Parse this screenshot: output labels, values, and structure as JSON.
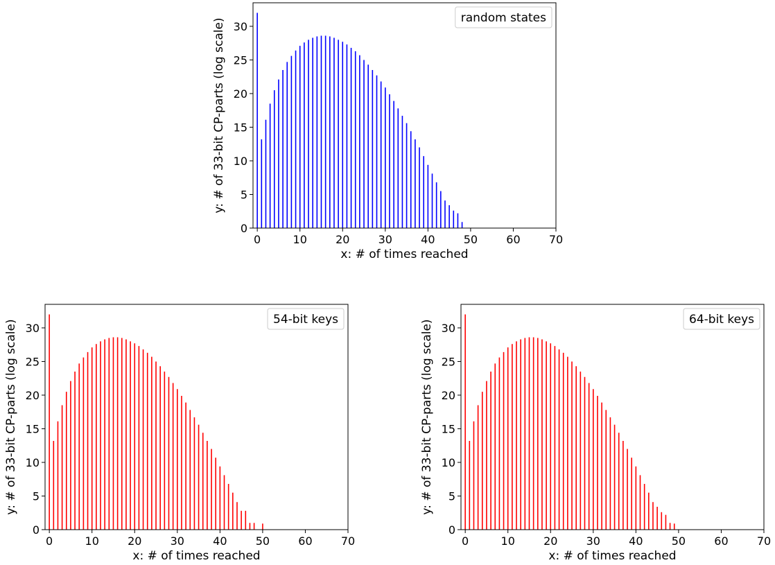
{
  "chart_data": [
    {
      "type": "bar",
      "legend": "random states",
      "legend_position": "top-right",
      "color": "#0000ff",
      "xlabel": "x: # of times reached",
      "ylabel": "y: # of 33-bit CP-parts (log scale)",
      "xlim": [
        -1,
        70
      ],
      "ylim": [
        0,
        33.5
      ],
      "xticks": [
        "0",
        "10",
        "20",
        "30",
        "40",
        "50",
        "60",
        "70"
      ],
      "yticks": [
        "0",
        "5",
        "10",
        "15",
        "20",
        "25",
        "30"
      ],
      "x": [
        0,
        1,
        2,
        3,
        4,
        5,
        6,
        7,
        8,
        9,
        10,
        11,
        12,
        13,
        14,
        15,
        16,
        17,
        18,
        19,
        20,
        21,
        22,
        23,
        24,
        25,
        26,
        27,
        28,
        29,
        30,
        31,
        32,
        33,
        34,
        35,
        36,
        37,
        38,
        39,
        40,
        41,
        42,
        43,
        44,
        45,
        46,
        47,
        48
      ],
      "values": [
        32.0,
        13.2,
        16.1,
        18.5,
        20.5,
        22.1,
        23.5,
        24.7,
        25.6,
        26.4,
        27.1,
        27.6,
        28.0,
        28.3,
        28.5,
        28.6,
        28.6,
        28.5,
        28.3,
        28.0,
        27.7,
        27.3,
        26.8,
        26.3,
        25.7,
        25.0,
        24.3,
        23.5,
        22.7,
        21.8,
        20.9,
        19.9,
        18.9,
        17.8,
        16.7,
        15.6,
        14.4,
        13.2,
        12.0,
        10.7,
        9.4,
        8.1,
        6.8,
        5.5,
        4.1,
        3.4,
        2.6,
        2.2,
        0.9
      ]
    },
    {
      "type": "bar",
      "legend": "54-bit keys",
      "legend_position": "top-right",
      "color": "#ff0000",
      "xlabel": "x: # of times reached",
      "ylabel": "y: # of 33-bit CP-parts (log scale)",
      "xlim": [
        -1,
        70
      ],
      "ylim": [
        0,
        33.5
      ],
      "xticks": [
        "0",
        "10",
        "20",
        "30",
        "40",
        "50",
        "60",
        "70"
      ],
      "yticks": [
        "0",
        "5",
        "10",
        "15",
        "20",
        "25",
        "30"
      ],
      "x": [
        0,
        1,
        2,
        3,
        4,
        5,
        6,
        7,
        8,
        9,
        10,
        11,
        12,
        13,
        14,
        15,
        16,
        17,
        18,
        19,
        20,
        21,
        22,
        23,
        24,
        25,
        26,
        27,
        28,
        29,
        30,
        31,
        32,
        33,
        34,
        35,
        36,
        37,
        38,
        39,
        40,
        41,
        42,
        43,
        44,
        45,
        46,
        47,
        48,
        50
      ],
      "values": [
        32.0,
        13.2,
        16.1,
        18.5,
        20.5,
        22.1,
        23.5,
        24.7,
        25.6,
        26.4,
        27.1,
        27.6,
        28.0,
        28.3,
        28.5,
        28.6,
        28.6,
        28.5,
        28.3,
        28.0,
        27.7,
        27.3,
        26.8,
        26.3,
        25.7,
        25.0,
        24.3,
        23.5,
        22.7,
        21.8,
        20.9,
        19.9,
        18.9,
        17.8,
        16.7,
        15.6,
        14.4,
        13.2,
        12.0,
        10.7,
        9.4,
        8.1,
        6.8,
        5.5,
        4.1,
        2.8,
        2.8,
        1.0,
        1.0,
        0.9
      ]
    },
    {
      "type": "bar",
      "legend": "64-bit keys",
      "legend_position": "top-right",
      "color": "#ff0000",
      "xlabel": "x: # of times reached",
      "ylabel": "y: # of 33-bit CP-parts (log scale)",
      "xlim": [
        -1,
        70
      ],
      "ylim": [
        0,
        33.5
      ],
      "xticks": [
        "0",
        "10",
        "20",
        "30",
        "40",
        "50",
        "60",
        "70"
      ],
      "yticks": [
        "0",
        "5",
        "10",
        "15",
        "20",
        "25",
        "30"
      ],
      "x": [
        0,
        1,
        2,
        3,
        4,
        5,
        6,
        7,
        8,
        9,
        10,
        11,
        12,
        13,
        14,
        15,
        16,
        17,
        18,
        19,
        20,
        21,
        22,
        23,
        24,
        25,
        26,
        27,
        28,
        29,
        30,
        31,
        32,
        33,
        34,
        35,
        36,
        37,
        38,
        39,
        40,
        41,
        42,
        43,
        44,
        45,
        46,
        47,
        48,
        49
      ],
      "values": [
        32.0,
        13.2,
        16.1,
        18.5,
        20.5,
        22.1,
        23.5,
        24.7,
        25.6,
        26.4,
        27.1,
        27.6,
        28.0,
        28.3,
        28.5,
        28.6,
        28.6,
        28.5,
        28.3,
        28.0,
        27.7,
        27.3,
        26.8,
        26.3,
        25.7,
        25.0,
        24.3,
        23.5,
        22.7,
        21.8,
        20.9,
        19.9,
        18.9,
        17.8,
        16.7,
        15.6,
        14.4,
        13.2,
        12.0,
        10.7,
        9.4,
        8.1,
        6.8,
        5.5,
        4.1,
        3.4,
        2.6,
        2.2,
        1.0,
        0.9
      ]
    }
  ]
}
